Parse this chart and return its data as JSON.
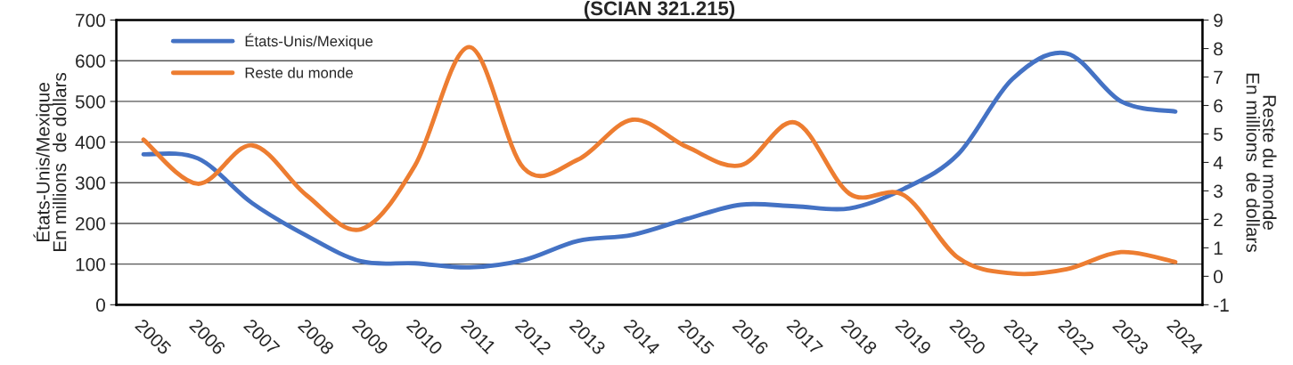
{
  "chart_data": {
    "type": "line",
    "title": "(SCIAN 321.215)",
    "ylabel": "États-Unis/Mexique\nEn millions  de dollars",
    "y2label": "Reste du monde\nEn millions  de dollars",
    "categories": [
      "2005",
      "2006",
      "2007",
      "2008",
      "2009",
      "2010",
      "2011",
      "2012",
      "2013",
      "2014",
      "2015",
      "2016",
      "2017",
      "2018",
      "2019",
      "2020",
      "2021",
      "2022",
      "2023",
      "2024"
    ],
    "series": [
      {
        "name": "États-Unis/Mexique",
        "color": "#4472c4",
        "values": [
          370,
          360,
          250,
          170,
          107,
          102,
          92,
          110,
          157,
          172,
          211,
          246,
          242,
          237,
          285,
          370,
          555,
          618,
          500,
          475
        ]
      },
      {
        "name": "Reste du monde",
        "color": "#ed7d31",
        "axis": "y2",
        "values": [
          4.8,
          3.25,
          4.6,
          2.85,
          1.65,
          3.9,
          8.05,
          3.8,
          4.1,
          5.5,
          4.55,
          3.9,
          5.4,
          2.9,
          2.85,
          0.65,
          0.1,
          0.25,
          0.85,
          0.5
        ]
      }
    ],
    "ylim": [
      0,
      700
    ],
    "yticks": [
      0,
      100,
      200,
      300,
      400,
      500,
      600,
      700
    ],
    "y2lim": [
      -1,
      9
    ],
    "y2ticks": [
      -1,
      0,
      1,
      2,
      3,
      4,
      5,
      6,
      7,
      8,
      9
    ],
    "grid": "y",
    "legend": "top left",
    "marker": "none",
    "line_style": "solid"
  }
}
